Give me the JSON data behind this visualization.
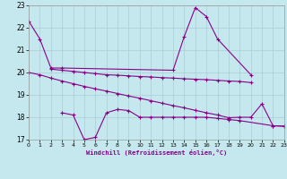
{
  "background_color": "#c5e8ee",
  "grid_color": "#aacdd6",
  "line_color": "#880088",
  "xlabel": "Windchill (Refroidissement éolien,°C)",
  "ylim": [
    17,
    23
  ],
  "xlim": [
    0,
    23
  ],
  "yticks": [
    17,
    18,
    19,
    20,
    21,
    22,
    23
  ],
  "xticks": [
    0,
    1,
    2,
    3,
    4,
    5,
    6,
    7,
    8,
    9,
    10,
    11,
    12,
    13,
    14,
    15,
    16,
    17,
    18,
    19,
    20,
    21,
    22,
    23
  ],
  "series1_x": [
    0,
    1,
    2,
    3,
    13,
    14,
    15,
    16,
    17,
    20
  ],
  "series1_y": [
    22.3,
    21.5,
    20.2,
    20.2,
    20.1,
    21.6,
    22.9,
    22.5,
    21.5,
    19.9
  ],
  "series2_x": [
    2,
    3,
    4,
    5,
    6,
    7,
    8,
    9,
    10,
    11,
    12,
    13,
    14,
    15,
    16,
    17,
    18,
    19,
    20
  ],
  "series2_y": [
    20.15,
    20.1,
    20.05,
    20.0,
    19.95,
    19.9,
    19.88,
    19.85,
    19.82,
    19.8,
    19.77,
    19.75,
    19.72,
    19.7,
    19.68,
    19.65,
    19.62,
    19.6,
    19.55
  ],
  "series3_x": [
    0,
    1,
    2,
    3,
    4,
    5,
    6,
    7,
    8,
    9,
    10,
    11,
    12,
    13,
    14,
    15,
    16,
    17,
    18,
    19,
    20,
    21,
    22,
    23
  ],
  "series3_y": [
    20.0,
    19.9,
    19.75,
    19.62,
    19.5,
    19.38,
    19.27,
    19.17,
    19.06,
    18.95,
    18.85,
    18.74,
    18.63,
    18.52,
    18.42,
    18.31,
    18.2,
    18.1,
    17.98,
    18.0,
    18.0,
    18.6,
    17.62,
    17.6
  ],
  "series4_x": [
    3,
    4,
    5,
    6,
    7,
    8,
    9,
    10,
    11,
    12,
    13,
    14,
    15,
    16,
    17,
    18,
    19,
    22,
    23
  ],
  "series4_y": [
    18.2,
    18.1,
    17.0,
    17.1,
    18.2,
    18.35,
    18.3,
    18.0,
    18.0,
    18.0,
    18.0,
    18.0,
    18.0,
    18.0,
    17.95,
    17.9,
    17.85,
    17.62,
    17.6
  ],
  "marker": "+",
  "markersize": 3,
  "linewidth": 0.8
}
